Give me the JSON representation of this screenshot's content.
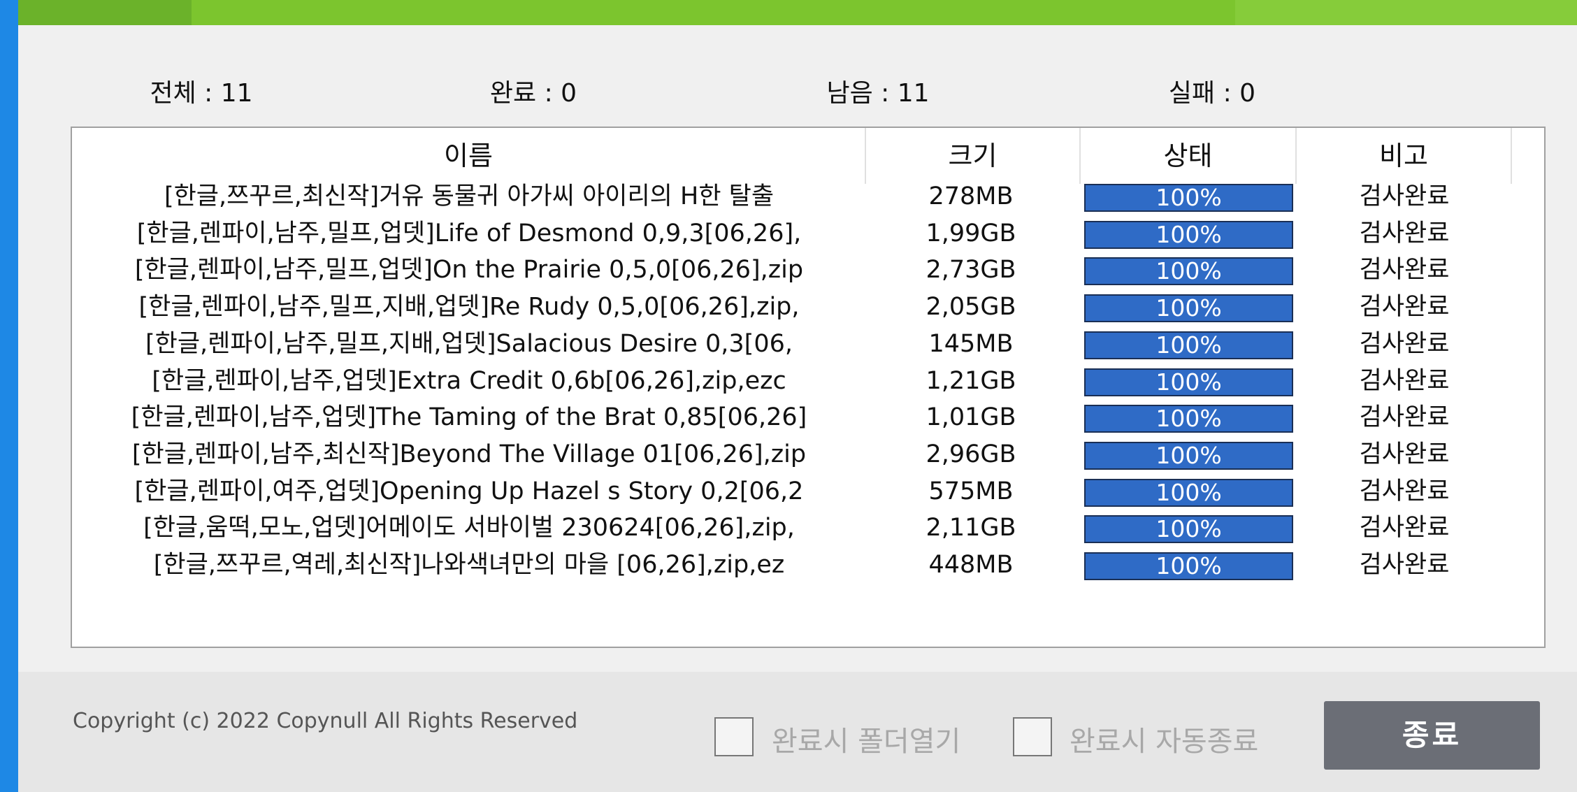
{
  "stats": {
    "total": "전체 : 11",
    "done": "완료 : 0",
    "remaining": "남음 : 11",
    "failed": "실패 : 0"
  },
  "table": {
    "headers": [
      "이름",
      "크기",
      "상태",
      "비고"
    ],
    "rows": [
      {
        "name": "[한글,쯔꾸르,최신작]거유 동물귀 아가씨 아이리의 H한 탈출",
        "size": "278MB",
        "progress": 100,
        "progress_label": "100%",
        "note": "검사완료"
      },
      {
        "name": "[한글,렌파이,남주,밀프,업뎃]Life of Desmond 0,9,3[06,26],",
        "size": "1,99GB",
        "progress": 100,
        "progress_label": "100%",
        "note": "검사완료"
      },
      {
        "name": "[한글,렌파이,남주,밀프,업뎃]On the Prairie 0,5,0[06,26],zip",
        "size": "2,73GB",
        "progress": 100,
        "progress_label": "100%",
        "note": "검사완료"
      },
      {
        "name": "[한글,렌파이,남주,밀프,지배,업뎃]Re Rudy 0,5,0[06,26],zip,",
        "size": "2,05GB",
        "progress": 100,
        "progress_label": "100%",
        "note": "검사완료"
      },
      {
        "name": "[한글,렌파이,남주,밀프,지배,업뎃]Salacious Desire 0,3[06,",
        "size": "145MB",
        "progress": 100,
        "progress_label": "100%",
        "note": "검사완료"
      },
      {
        "name": "[한글,렌파이,남주,업뎃]Extra Credit 0,6b[06,26],zip,ezc",
        "size": "1,21GB",
        "progress": 100,
        "progress_label": "100%",
        "note": "검사완료"
      },
      {
        "name": "[한글,렌파이,남주,업뎃]The Taming of the Brat 0,85[06,26]",
        "size": "1,01GB",
        "progress": 100,
        "progress_label": "100%",
        "note": "검사완료"
      },
      {
        "name": "[한글,렌파이,남주,최신작]Beyond The Village 01[06,26],zip",
        "size": "2,96GB",
        "progress": 100,
        "progress_label": "100%",
        "note": "검사완료"
      },
      {
        "name": "[한글,렌파이,여주,업뎃]Opening Up Hazel s Story 0,2[06,2",
        "size": "575MB",
        "progress": 100,
        "progress_label": "100%",
        "note": "검사완료"
      },
      {
        "name": "[한글,움떡,모노,업뎃]어메이도 서바이벌 230624[06,26],zip,",
        "size": "2,11GB",
        "progress": 100,
        "progress_label": "100%",
        "note": "검사완료"
      },
      {
        "name": "[한글,쯔꾸르,역레,최신작]나와색녀만의 마을 [06,26],zip,ez",
        "size": "448MB",
        "progress": 100,
        "progress_label": "100%",
        "note": "검사완료"
      }
    ]
  },
  "footer": {
    "copyright": "Copyright (c) 2022 Copynull All Rights Reserved",
    "open_folder": "완료시 폴더열기",
    "auto_exit": "완료시 자동종료",
    "exit_button": "종료"
  }
}
